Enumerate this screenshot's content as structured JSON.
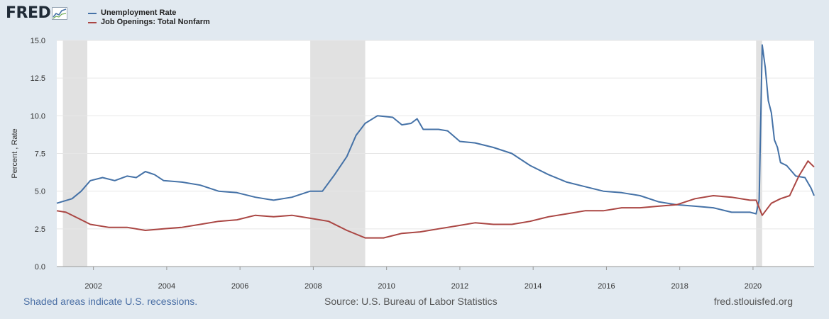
{
  "header": {
    "logo_text": "FRED",
    "logo_icon": "fred-chart-logo-icon"
  },
  "footer": {
    "recession_note": "Shaded areas indicate U.S. recessions.",
    "source": "Source: U.S. Bureau of Labor Statistics",
    "site": "fred.stlouisfed.org"
  },
  "colors": {
    "background": "#e1e9f0",
    "plot_background": "#ffffff",
    "unemployment": "#4572a7",
    "job_openings": "#aa4643",
    "recession": "#e1e1e1",
    "grid": "#e6e6e6"
  },
  "chart_data": {
    "type": "line",
    "ylabel": "Percent , Rate",
    "xlim": [
      "2001-01",
      "2021-09"
    ],
    "ylim": [
      0,
      15
    ],
    "yticks": [
      "0.0",
      "2.5",
      "5.0",
      "7.5",
      "10.0",
      "12.5",
      "15.0"
    ],
    "xticks": [
      "2002",
      "2004",
      "2006",
      "2008",
      "2010",
      "2012",
      "2014",
      "2016",
      "2018",
      "2020"
    ],
    "grid": true,
    "legend_position": "top-left",
    "recessions": [
      {
        "start": "2001-03",
        "end": "2001-11"
      },
      {
        "start": "2007-12",
        "end": "2009-06"
      },
      {
        "start": "2020-02",
        "end": "2020-04"
      }
    ],
    "series": [
      {
        "name": "Unemployment Rate",
        "color": "#4572a7",
        "points": [
          [
            "2001-01",
            4.2
          ],
          [
            "2001-06",
            4.5
          ],
          [
            "2001-09",
            5.0
          ],
          [
            "2001-12",
            5.7
          ],
          [
            "2002-04",
            5.9
          ],
          [
            "2002-08",
            5.7
          ],
          [
            "2002-12",
            6.0
          ],
          [
            "2003-03",
            5.9
          ],
          [
            "2003-06",
            6.3
          ],
          [
            "2003-09",
            6.1
          ],
          [
            "2003-12",
            5.7
          ],
          [
            "2004-06",
            5.6
          ],
          [
            "2004-12",
            5.4
          ],
          [
            "2005-06",
            5.0
          ],
          [
            "2005-12",
            4.9
          ],
          [
            "2006-06",
            4.6
          ],
          [
            "2006-12",
            4.4
          ],
          [
            "2007-06",
            4.6
          ],
          [
            "2007-12",
            5.0
          ],
          [
            "2008-04",
            5.0
          ],
          [
            "2008-08",
            6.1
          ],
          [
            "2008-12",
            7.3
          ],
          [
            "2009-03",
            8.7
          ],
          [
            "2009-06",
            9.5
          ],
          [
            "2009-10",
            10.0
          ],
          [
            "2010-03",
            9.9
          ],
          [
            "2010-06",
            9.4
          ],
          [
            "2010-09",
            9.5
          ],
          [
            "2010-11",
            9.8
          ],
          [
            "2011-01",
            9.1
          ],
          [
            "2011-06",
            9.1
          ],
          [
            "2011-09",
            9.0
          ],
          [
            "2012-01",
            8.3
          ],
          [
            "2012-06",
            8.2
          ],
          [
            "2012-12",
            7.9
          ],
          [
            "2013-06",
            7.5
          ],
          [
            "2013-12",
            6.7
          ],
          [
            "2014-06",
            6.1
          ],
          [
            "2014-12",
            5.6
          ],
          [
            "2015-06",
            5.3
          ],
          [
            "2015-12",
            5.0
          ],
          [
            "2016-06",
            4.9
          ],
          [
            "2016-12",
            4.7
          ],
          [
            "2017-06",
            4.3
          ],
          [
            "2017-12",
            4.1
          ],
          [
            "2018-06",
            4.0
          ],
          [
            "2018-12",
            3.9
          ],
          [
            "2019-06",
            3.6
          ],
          [
            "2019-12",
            3.6
          ],
          [
            "2020-02",
            3.5
          ],
          [
            "2020-03",
            4.4
          ],
          [
            "2020-04",
            14.7
          ],
          [
            "2020-05",
            13.2
          ],
          [
            "2020-06",
            11.0
          ],
          [
            "2020-07",
            10.2
          ],
          [
            "2020-08",
            8.4
          ],
          [
            "2020-09",
            7.9
          ],
          [
            "2020-10",
            6.9
          ],
          [
            "2020-12",
            6.7
          ],
          [
            "2021-03",
            6.0
          ],
          [
            "2021-06",
            5.9
          ],
          [
            "2021-08",
            5.2
          ],
          [
            "2021-09",
            4.7
          ]
        ]
      },
      {
        "name": "Job Openings: Total Nonfarm",
        "color": "#aa4643",
        "points": [
          [
            "2001-01",
            3.7
          ],
          [
            "2001-04",
            3.6
          ],
          [
            "2001-08",
            3.2
          ],
          [
            "2001-12",
            2.8
          ],
          [
            "2002-06",
            2.6
          ],
          [
            "2002-12",
            2.6
          ],
          [
            "2003-06",
            2.4
          ],
          [
            "2003-12",
            2.5
          ],
          [
            "2004-06",
            2.6
          ],
          [
            "2004-12",
            2.8
          ],
          [
            "2005-06",
            3.0
          ],
          [
            "2005-12",
            3.1
          ],
          [
            "2006-06",
            3.4
          ],
          [
            "2006-12",
            3.3
          ],
          [
            "2007-06",
            3.4
          ],
          [
            "2007-12",
            3.2
          ],
          [
            "2008-06",
            3.0
          ],
          [
            "2008-12",
            2.4
          ],
          [
            "2009-06",
            1.9
          ],
          [
            "2009-12",
            1.9
          ],
          [
            "2010-06",
            2.2
          ],
          [
            "2010-12",
            2.3
          ],
          [
            "2011-06",
            2.5
          ],
          [
            "2011-12",
            2.7
          ],
          [
            "2012-06",
            2.9
          ],
          [
            "2012-12",
            2.8
          ],
          [
            "2013-06",
            2.8
          ],
          [
            "2013-12",
            3.0
          ],
          [
            "2014-06",
            3.3
          ],
          [
            "2014-12",
            3.5
          ],
          [
            "2015-06",
            3.7
          ],
          [
            "2015-12",
            3.7
          ],
          [
            "2016-06",
            3.9
          ],
          [
            "2016-12",
            3.9
          ],
          [
            "2017-06",
            4.0
          ],
          [
            "2017-12",
            4.1
          ],
          [
            "2018-06",
            4.5
          ],
          [
            "2018-12",
            4.7
          ],
          [
            "2019-06",
            4.6
          ],
          [
            "2019-12",
            4.4
          ],
          [
            "2020-02",
            4.4
          ],
          [
            "2020-04",
            3.4
          ],
          [
            "2020-07",
            4.2
          ],
          [
            "2020-10",
            4.5
          ],
          [
            "2021-01",
            4.7
          ],
          [
            "2021-04",
            6.0
          ],
          [
            "2021-07",
            7.0
          ],
          [
            "2021-09",
            6.6
          ]
        ]
      }
    ]
  }
}
